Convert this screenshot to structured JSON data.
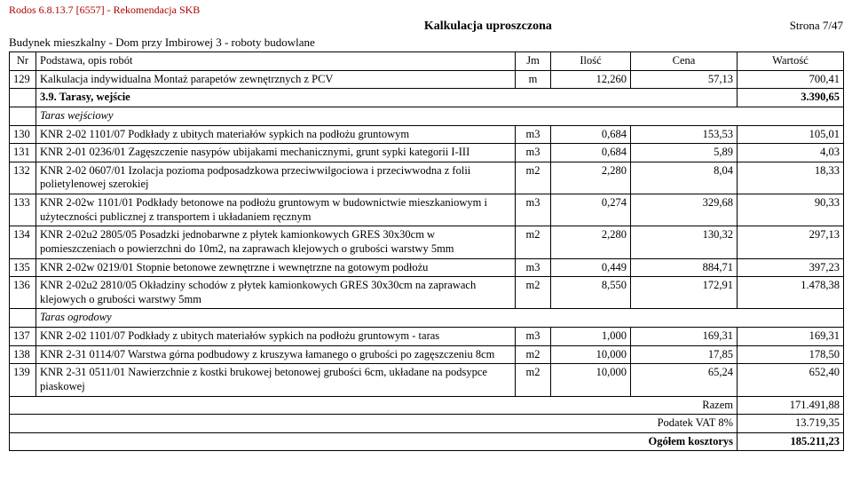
{
  "header": {
    "product_line": "Rodos 6.8.13.7 [6557] - Rekomendacja SKB",
    "title": "Kalkulacja uproszczona",
    "page": "Strona 7/47",
    "subtitle": "Budynek mieszkalny - Dom przy Imbirowej 3 - roboty budowlane"
  },
  "columns": {
    "nr": "Nr",
    "desc": "Podstawa, opis robót",
    "jm": "Jm",
    "ilosc": "Ilość",
    "cena": "Cena",
    "wartosc": "Wartość"
  },
  "rows": [
    {
      "nr": "129",
      "desc": "Kalkulacja indywidualna  Montaż parapetów zewnętrznych z PCV",
      "jm": "m",
      "ilosc": "12,260",
      "cena": "57,13",
      "wartosc": "700,41"
    },
    {
      "section": true,
      "nr": "",
      "desc": "3.9.  Tarasy, wejście",
      "wartosc": "3.390,65"
    },
    {
      "italic": true,
      "nr": "",
      "desc": "Taras wejściowy"
    },
    {
      "nr": "130",
      "desc": "KNR 2-02 1101/07  Podkłady z ubitych materiałów sypkich na podłożu gruntowym",
      "jm": "m3",
      "ilosc": "0,684",
      "cena": "153,53",
      "wartosc": "105,01"
    },
    {
      "nr": "131",
      "desc": "KNR 2-01 0236/01  Zagęszczenie nasypów ubijakami mechanicznymi, grunt sypki kategorii I-III",
      "jm": "m3",
      "ilosc": "0,684",
      "cena": "5,89",
      "wartosc": "4,03"
    },
    {
      "nr": "132",
      "desc": "KNR 2-02 0607/01  Izolacja pozioma podposadzkowa przeciwwilgociowa i przeciwwodna z folii polietylenowej szerokiej",
      "jm": "m2",
      "ilosc": "2,280",
      "cena": "8,04",
      "wartosc": "18,33"
    },
    {
      "nr": "133",
      "desc": "KNR 2-02w 1101/01  Podkłady betonowe na podłożu gruntowym w budownictwie mieszkaniowym i użyteczności publicznej z transportem i układaniem ręcznym",
      "jm": "m3",
      "ilosc": "0,274",
      "cena": "329,68",
      "wartosc": "90,33"
    },
    {
      "nr": "134",
      "desc": "KNR 2-02u2 2805/05  Posadzki jednobarwne z płytek kamionkowych GRES 30x30cm w pomieszczeniach o powierzchni do 10m2, na zaprawach klejowych o grubości warstwy 5mm",
      "jm": "m2",
      "ilosc": "2,280",
      "cena": "130,32",
      "wartosc": "297,13"
    },
    {
      "nr": "135",
      "desc": "KNR 2-02w 0219/01  Stopnie betonowe zewnętrzne i wewnętrzne na gotowym podłożu",
      "jm": "m3",
      "ilosc": "0,449",
      "cena": "884,71",
      "wartosc": "397,23"
    },
    {
      "nr": "136",
      "desc": "KNR 2-02u2 2810/05  Okładziny schodów z płytek kamionkowych GRES 30x30cm na zaprawach klejowych o grubości warstwy 5mm",
      "jm": "m2",
      "ilosc": "8,550",
      "cena": "172,91",
      "wartosc": "1.478,38"
    },
    {
      "italic": true,
      "nr": "",
      "desc": "Taras ogrodowy"
    },
    {
      "nr": "137",
      "desc": "KNR 2-02 1101/07  Podkłady z ubitych materiałów sypkich na podłożu gruntowym - taras",
      "jm": "m3",
      "ilosc": "1,000",
      "cena": "169,31",
      "wartosc": "169,31"
    },
    {
      "nr": "138",
      "desc": "KNR 2-31 0114/07  Warstwa górna podbudowy z kruszywa łamanego o grubości po zagęszczeniu 8cm",
      "jm": "m2",
      "ilosc": "10,000",
      "cena": "17,85",
      "wartosc": "178,50"
    },
    {
      "nr": "139",
      "desc": "KNR 2-31 0511/01  Nawierzchnie z kostki brukowej betonowej grubości 6cm, układane na podsypce piaskowej",
      "jm": "m2",
      "ilosc": "10,000",
      "cena": "65,24",
      "wartosc": "652,40"
    }
  ],
  "totals": [
    {
      "label": "Razem",
      "value": "171.491,88"
    },
    {
      "label": "Podatek VAT 8%",
      "value": "13.719,35"
    },
    {
      "label": "Ogółem kosztorys",
      "value": "185.211,23",
      "bold": true
    }
  ]
}
